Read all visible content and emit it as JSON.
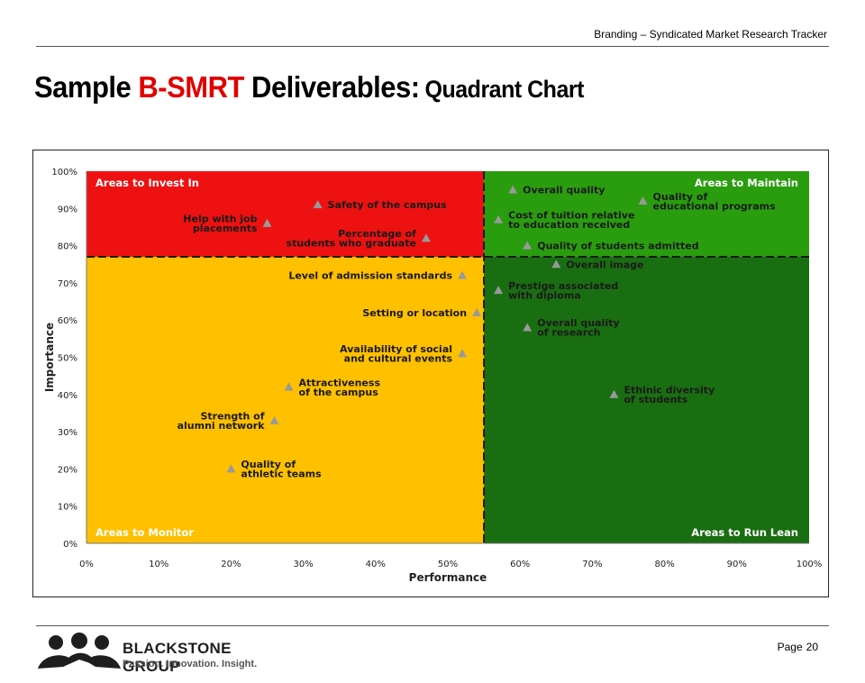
{
  "header": {
    "subtitle": "Branding – Syndicated Market Research Tracker"
  },
  "title": {
    "part1": "Sample ",
    "highlight": "B-SMRT",
    "part2": " Deliverables:",
    "sub": "Quadrant Chart"
  },
  "footer": {
    "company": "BLACKSTONE GROUP",
    "tagline": "Passion. Innovation. Insight.",
    "page_label": "Page",
    "page_number": "20"
  },
  "colors": {
    "invest": "#ee1111",
    "maintain": "#2a9d0f",
    "monitor": "#ffc000",
    "run_lean": "#1a6e12",
    "marker": "#999999",
    "title_accent": "#e00000"
  },
  "chart_data": {
    "type": "scatter",
    "xlabel": "Performance",
    "ylabel": "Importance",
    "xlim": [
      0,
      100
    ],
    "ylim": [
      0,
      100
    ],
    "x_ticks": [
      "0%",
      "10%",
      "20%",
      "30%",
      "40%",
      "50%",
      "60%",
      "70%",
      "80%",
      "90%",
      "100%"
    ],
    "y_ticks": [
      "0%",
      "10%",
      "20%",
      "30%",
      "40%",
      "50%",
      "60%",
      "70%",
      "80%",
      "90%",
      "100%"
    ],
    "divider": {
      "x": 55,
      "y": 77
    },
    "quadrants": [
      {
        "name": "Areas to Invest In",
        "position": "top-left"
      },
      {
        "name": "Areas to Maintain",
        "position": "top-right"
      },
      {
        "name": "Areas to Monitor",
        "position": "bottom-left"
      },
      {
        "name": "Areas to Run Lean",
        "position": "bottom-right"
      }
    ],
    "points": [
      {
        "lines": [
          "Safety of the campus"
        ],
        "x": 32,
        "y": 91,
        "label_side": "right"
      },
      {
        "lines": [
          "Help with job",
          "placements"
        ],
        "x": 25,
        "y": 86,
        "label_side": "left"
      },
      {
        "lines": [
          "Percentage of",
          "students who graduate"
        ],
        "x": 47,
        "y": 82,
        "label_side": "left"
      },
      {
        "lines": [
          "Overall quality"
        ],
        "x": 59,
        "y": 95,
        "label_side": "right"
      },
      {
        "lines": [
          "Quality of",
          "educational programs"
        ],
        "x": 77,
        "y": 92,
        "label_side": "right"
      },
      {
        "lines": [
          "Cost of tuition relative",
          "to education received"
        ],
        "x": 57,
        "y": 87,
        "label_side": "right"
      },
      {
        "lines": [
          "Quality of students admitted"
        ],
        "x": 61,
        "y": 80,
        "label_side": "right"
      },
      {
        "lines": [
          "Overall image"
        ],
        "x": 65,
        "y": 75,
        "label_side": "right"
      },
      {
        "lines": [
          "Level of admission standards"
        ],
        "x": 52,
        "y": 72,
        "label_side": "left"
      },
      {
        "lines": [
          "Prestige associated",
          "with diploma"
        ],
        "x": 57,
        "y": 68,
        "label_side": "right"
      },
      {
        "lines": [
          "Setting or location"
        ],
        "x": 54,
        "y": 62,
        "label_side": "left"
      },
      {
        "lines": [
          "Overall quality",
          "of research"
        ],
        "x": 61,
        "y": 58,
        "label_side": "right"
      },
      {
        "lines": [
          "Availability of social",
          "and cultural events"
        ],
        "x": 52,
        "y": 51,
        "label_side": "left"
      },
      {
        "lines": [
          "Attractiveness",
          "of the campus"
        ],
        "x": 28,
        "y": 42,
        "label_side": "right"
      },
      {
        "lines": [
          "Ethinic diversity",
          "of students"
        ],
        "x": 73,
        "y": 40,
        "label_side": "right"
      },
      {
        "lines": [
          "Strength of",
          "alumni network"
        ],
        "x": 26,
        "y": 33,
        "label_side": "left"
      },
      {
        "lines": [
          "Quality of",
          "athletic teams"
        ],
        "x": 20,
        "y": 20,
        "label_side": "right"
      }
    ]
  }
}
